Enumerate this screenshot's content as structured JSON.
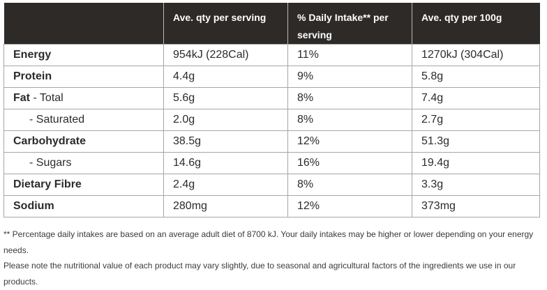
{
  "table": {
    "headers": [
      "",
      "Ave. qty per serving",
      "% Daily Intake** per serving",
      "Ave. qty per 100g"
    ],
    "rows": [
      {
        "name_bold": "Energy",
        "name_rest": "",
        "per_serving": "954kJ (228Cal)",
        "daily_intake": "11%",
        "per_100g": "1270kJ (304Cal)"
      },
      {
        "name_bold": "Protein",
        "name_rest": "",
        "per_serving": "4.4g",
        "daily_intake": "9%",
        "per_100g": "5.8g"
      },
      {
        "name_bold": "Fat",
        "name_rest": " - Total",
        "per_serving": "5.6g",
        "daily_intake": "8%",
        "per_100g": "7.4g"
      },
      {
        "name_bold": "",
        "name_rest": "- Saturated",
        "per_serving": "2.0g",
        "daily_intake": "8%",
        "per_100g": "2.7g"
      },
      {
        "name_bold": "Carbohydrate",
        "name_rest": "",
        "per_serving": "38.5g",
        "daily_intake": "12%",
        "per_100g": "51.3g"
      },
      {
        "name_bold": "",
        "name_rest": "- Sugars",
        "per_serving": "14.6g",
        "daily_intake": "16%",
        "per_100g": "19.4g"
      },
      {
        "name_bold": "Dietary Fibre",
        "name_rest": "",
        "per_serving": "2.4g",
        "daily_intake": "8%",
        "per_100g": "3.3g"
      },
      {
        "name_bold": "Sodium",
        "name_rest": "",
        "per_serving": "280mg",
        "daily_intake": "12%",
        "per_100g": "373mg"
      }
    ]
  },
  "notes": {
    "daily_intake_note": "** Percentage daily intakes are based on an average adult diet of 8700 kJ. Your daily intakes may be higher or lower depending on your energy needs.",
    "variation_note": "Please note the nutritional value of each product may vary slightly, due to seasonal and agricultural factors of the ingredients we use in our products."
  }
}
